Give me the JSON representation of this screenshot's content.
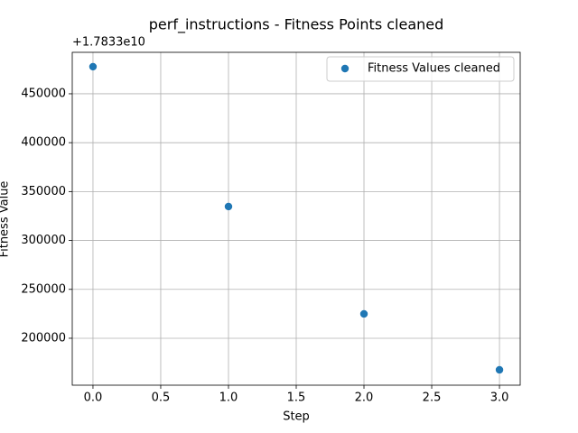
{
  "chart_data": {
    "type": "scatter",
    "title": "perf_instructions - Fitness Points cleaned",
    "x_label": "Step",
    "y_label": "Fitness Value",
    "y_offset_text": "+1.7833e10",
    "series": [
      {
        "name": "Fitness Values cleaned",
        "color": "#1f77b4",
        "x": [
          0,
          1,
          2,
          3
        ],
        "values": [
          477700,
          334700,
          224900,
          167700
        ]
      }
    ],
    "xlim": [
      -0.153,
      3.153
    ],
    "xticks": [
      {
        "value": 0,
        "label": "0.0"
      },
      {
        "value": 0.5,
        "label": "0.5"
      },
      {
        "value": 1,
        "label": "1.0"
      },
      {
        "value": 1.5,
        "label": "1.5"
      },
      {
        "value": 2,
        "label": "2.0"
      },
      {
        "value": 2.5,
        "label": "2.5"
      },
      {
        "value": 3,
        "label": "3.0"
      }
    ],
    "ylim": [
      152000,
      492400
    ],
    "yticks": [
      200000,
      250000,
      300000,
      350000,
      400000,
      450000
    ],
    "grid": true,
    "legend": "upper right"
  }
}
